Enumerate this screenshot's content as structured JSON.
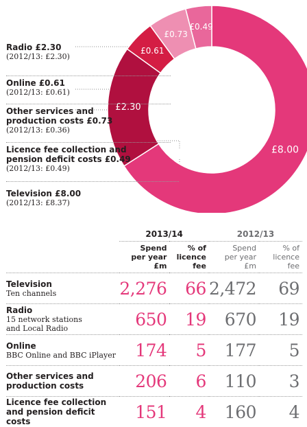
{
  "chart_data": [
    {
      "type": "pie",
      "categories": [
        "Television",
        "Radio",
        "Online",
        "Other services and production costs",
        "Licence fee collection and pension deficit costs"
      ],
      "values": [
        8.0,
        2.3,
        0.61,
        0.73,
        0.49
      ],
      "slice_labels": [
        "£8.00",
        "£2.30",
        "£0.61",
        "£0.73",
        "£0.49"
      ],
      "colors": [
        "#e4387a",
        "#b0103f",
        "#d41d44",
        "#ee8fb2",
        "#e9679b"
      ]
    },
    {
      "type": "table",
      "columns": [
        "2013/14 Spend per year £m",
        "2013/14 % of licence fee",
        "2012/13 Spend per year £m",
        "2012/13 % of licence fee"
      ],
      "rows": [
        {
          "category": "Television",
          "values": [
            2276,
            66,
            2472,
            69
          ]
        },
        {
          "category": "Radio",
          "values": [
            650,
            19,
            670,
            19
          ]
        },
        {
          "category": "Online",
          "values": [
            174,
            5,
            177,
            5
          ]
        },
        {
          "category": "Other services and production costs",
          "values": [
            206,
            6,
            110,
            3
          ]
        },
        {
          "category": "Licence fee collection and pension deficit costs",
          "values": [
            151,
            4,
            160,
            4
          ]
        }
      ]
    }
  ],
  "legend": [
    {
      "line1": "Radio £2.30",
      "line2": "(2012/13: £2.30)"
    },
    {
      "line1": "Online £0.61",
      "line2": "(2012/13: £0.61)"
    },
    {
      "line1": "Other services and",
      "line1b": "production costs £0.73",
      "line2": "(2012/13: £0.36)"
    },
    {
      "line1": "Licence fee collection and",
      "line1b": "pension deficit costs £0.49",
      "line2": "(2012/13: £0.49)"
    },
    {
      "line1": "Television £8.00",
      "line2": "(2012/13: £8.37)"
    }
  ],
  "table": {
    "year_a": "2013/14",
    "year_b": "2012/13",
    "col_spend": [
      "Spend",
      "per year",
      "£m"
    ],
    "col_pct": [
      "% of",
      "licence",
      "fee"
    ],
    "rows": [
      {
        "name": "Television",
        "sub1": "Ten channels",
        "sub2": "",
        "a_spend": "2,276",
        "a_pct": "66",
        "b_spend": "2,472",
        "b_pct": "69"
      },
      {
        "name": "Radio",
        "sub1": "15 network stations",
        "sub2": "and Local Radio",
        "a_spend": "650",
        "a_pct": "19",
        "b_spend": "670",
        "b_pct": "19"
      },
      {
        "name": "Online",
        "sub1": "BBC Online and BBC iPlayer",
        "sub2": "",
        "a_spend": "174",
        "a_pct": "5",
        "b_spend": "177",
        "b_pct": "5"
      },
      {
        "name": "Other services and",
        "sub1": "production costs",
        "sub2": "",
        "a_spend": "206",
        "a_pct": "6",
        "b_spend": "110",
        "b_pct": "3",
        "sub_bold": true
      },
      {
        "name": "Licence fee collection",
        "sub1": "and pension deficit costs",
        "sub2": "",
        "a_spend": "151",
        "a_pct": "4",
        "b_spend": "160",
        "b_pct": "4",
        "sub_bold": true
      }
    ]
  }
}
